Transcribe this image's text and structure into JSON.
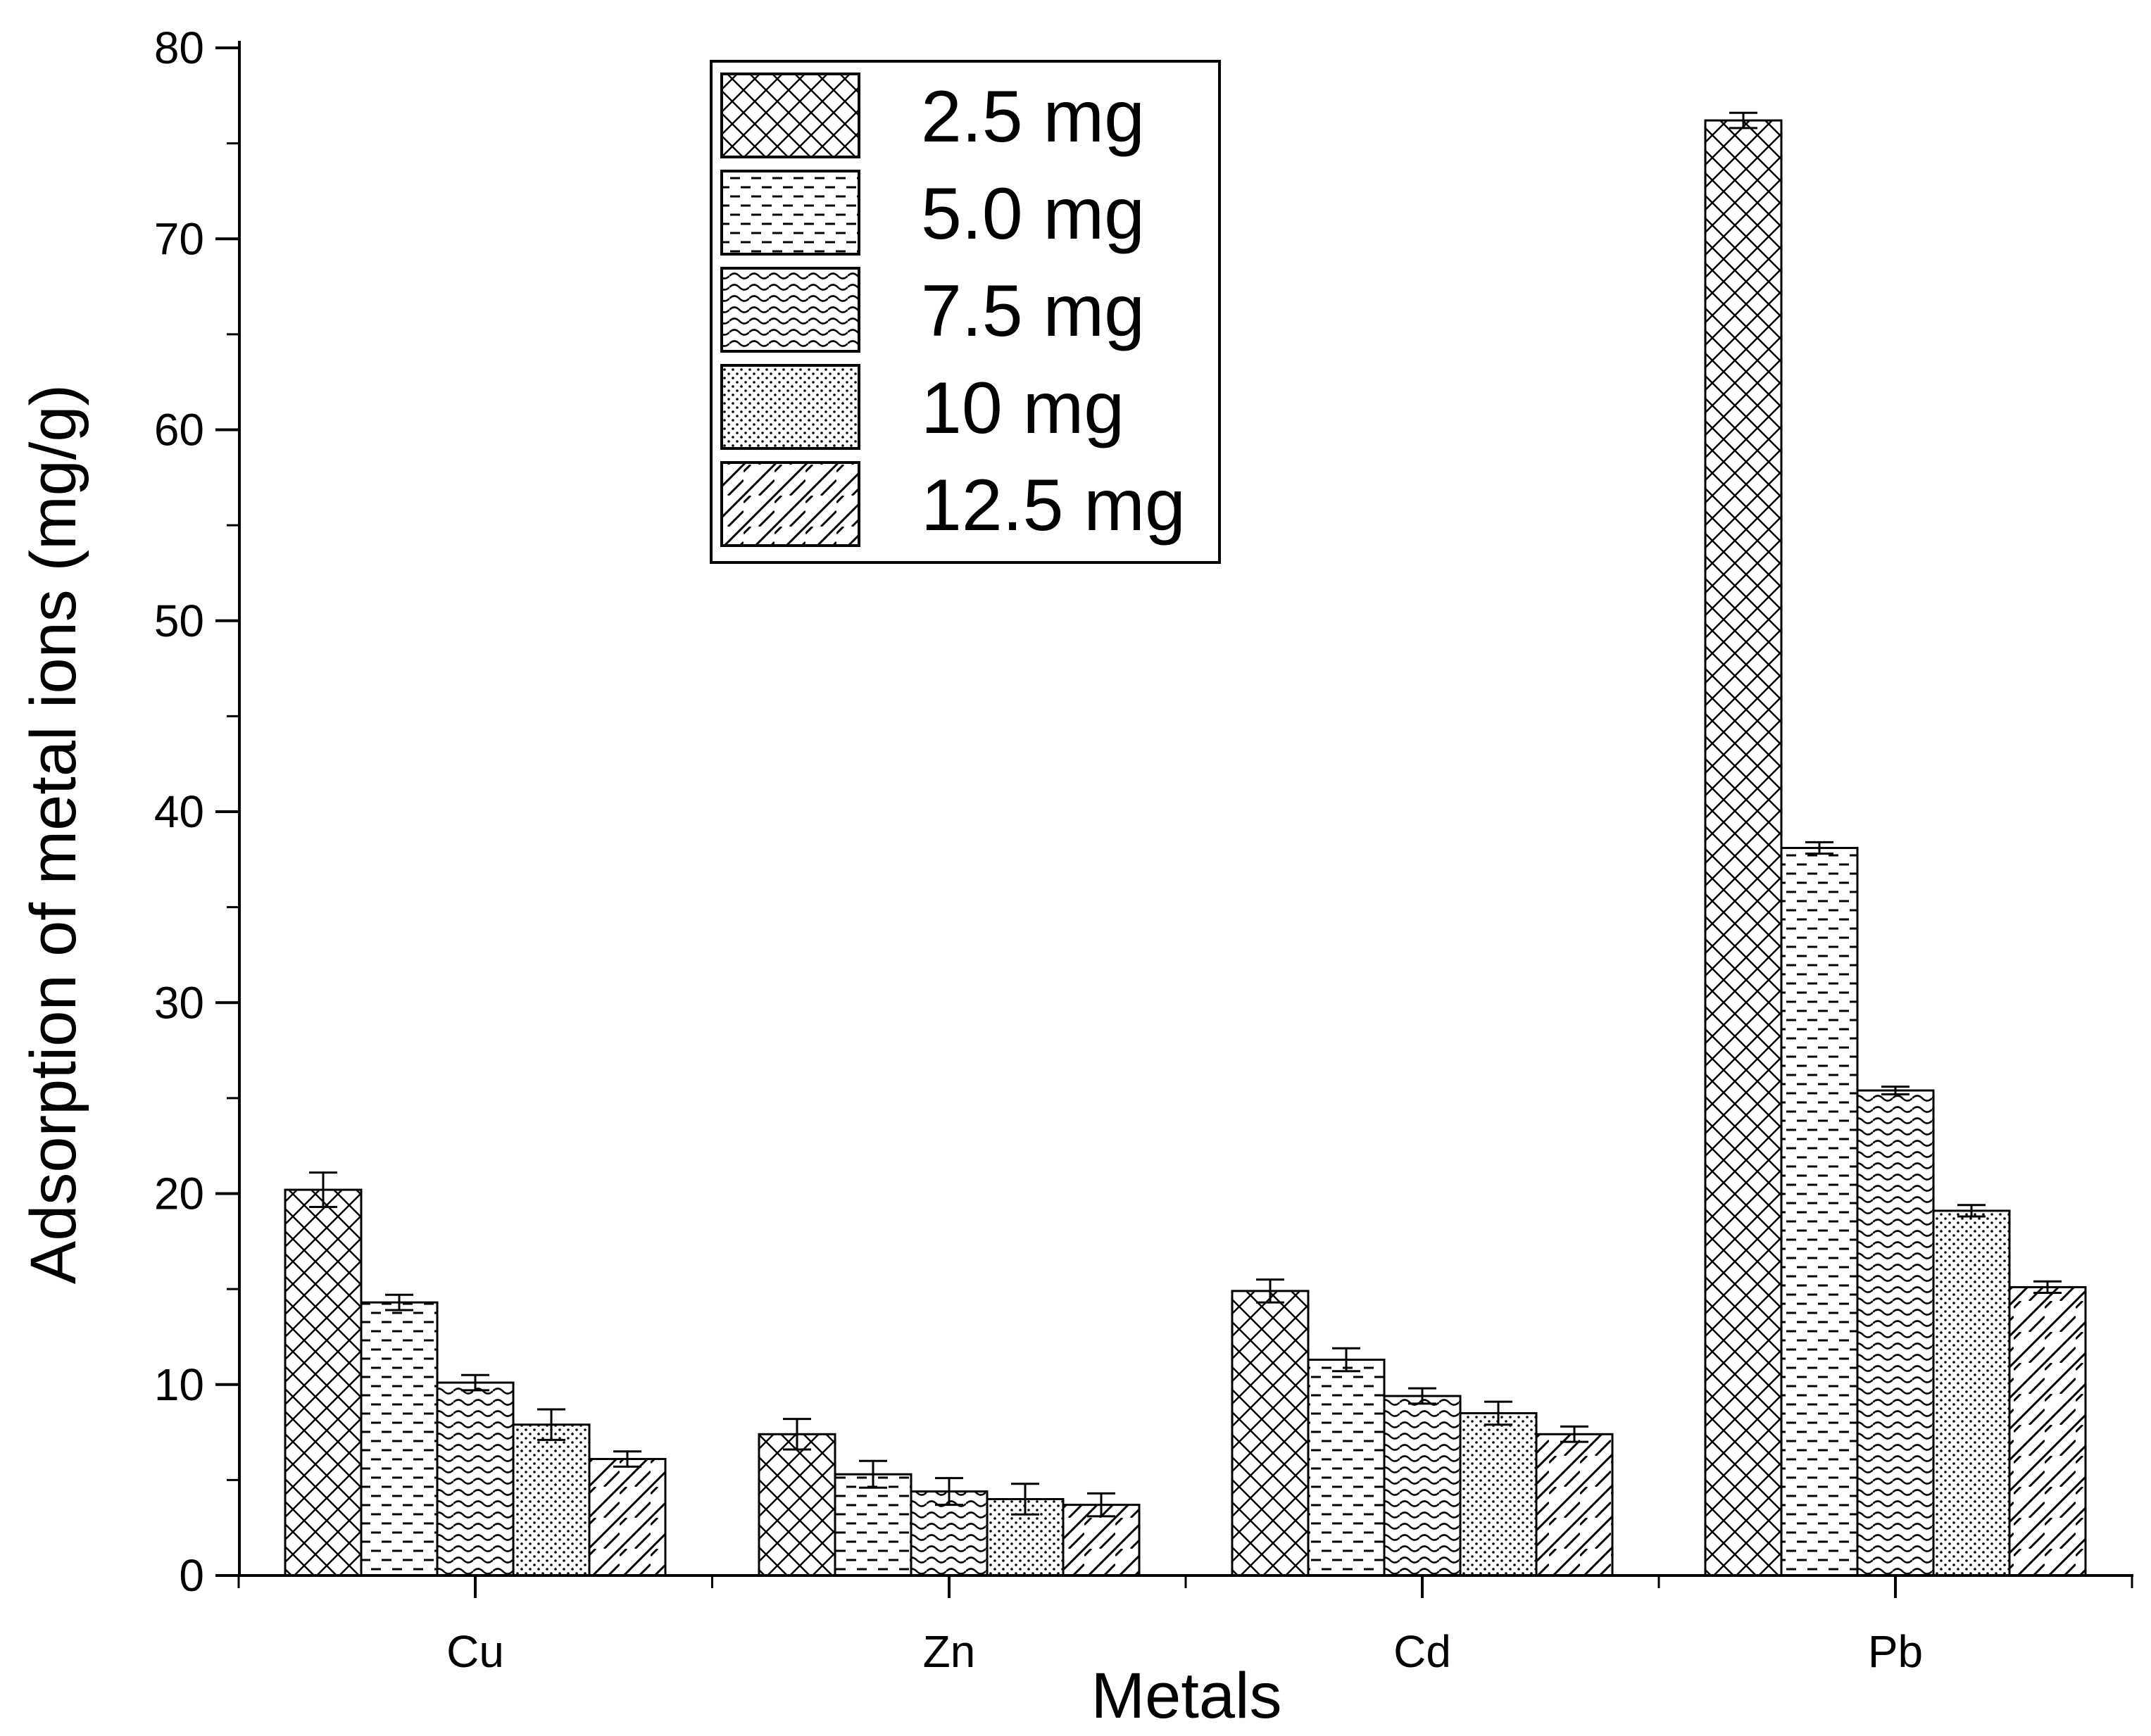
{
  "chart_data": {
    "type": "bar",
    "title": "",
    "xlabel": "Metals",
    "ylabel": "Adsorption of metal ions (mg/g)",
    "ylim": [
      0,
      80
    ],
    "yticks": [
      0,
      10,
      20,
      30,
      40,
      50,
      60,
      70,
      80
    ],
    "categories": [
      "Cu",
      "Zn",
      "Cd",
      "Pb"
    ],
    "legend_position": "top-center",
    "series": [
      {
        "name": "2.5 mg",
        "pattern": "crosshatch",
        "values": [
          20.2,
          7.4,
          14.9,
          76.2
        ],
        "errors": [
          0.9,
          0.8,
          0.6,
          0.4
        ]
      },
      {
        "name": "5.0 mg",
        "pattern": "dashes",
        "values": [
          14.3,
          5.3,
          11.3,
          38.1
        ],
        "errors": [
          0.4,
          0.7,
          0.6,
          0.3
        ]
      },
      {
        "name": "7.5 mg",
        "pattern": "waves",
        "values": [
          10.1,
          4.4,
          9.4,
          25.4
        ],
        "errors": [
          0.4,
          0.7,
          0.4,
          0.2
        ]
      },
      {
        "name": "10 mg",
        "pattern": "dots",
        "values": [
          7.9,
          4.0,
          8.5,
          19.1
        ],
        "errors": [
          0.8,
          0.8,
          0.6,
          0.3
        ]
      },
      {
        "name": "12.5 mg",
        "pattern": "diagonal",
        "values": [
          6.1,
          3.7,
          7.4,
          15.1
        ],
        "errors": [
          0.4,
          0.6,
          0.4,
          0.3
        ]
      }
    ]
  }
}
